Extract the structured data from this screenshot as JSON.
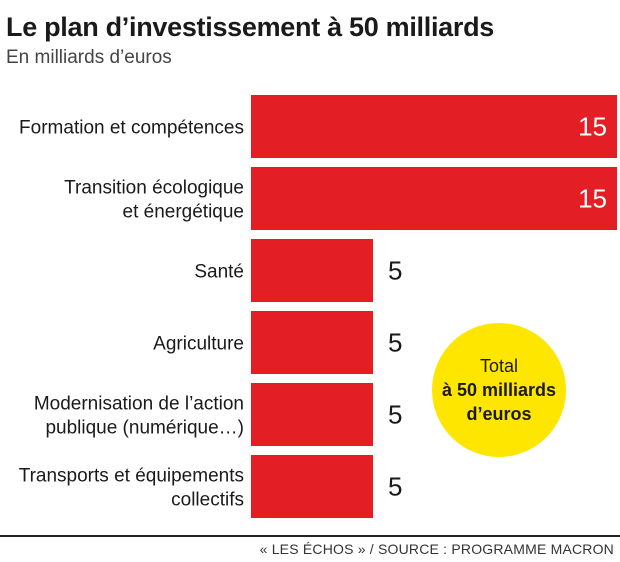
{
  "title": "Le plan d’investissement à 50 milliards",
  "subtitle": "En milliards d’euros",
  "colors": {
    "bar": "#e31e24",
    "bubble": "#ffe600"
  },
  "total": {
    "line1": "Total",
    "line2": "à 50 milliards",
    "line3": "d’euros"
  },
  "source": "« LES ÉCHOS » / SOURCE :  PROGRAMME MACRON",
  "chart_data": {
    "type": "bar",
    "orientation": "horizontal",
    "categories": [
      [
        "Formation et compétences"
      ],
      [
        "Transition écologique",
        "et énergétique"
      ],
      [
        "Santé"
      ],
      [
        "Agriculture"
      ],
      [
        "Modernisation de l’action",
        "publique (numérique…)"
      ],
      [
        "Transports et équipements",
        "collectifs"
      ]
    ],
    "values": [
      15,
      15,
      5,
      5,
      5,
      5
    ],
    "value_labels": [
      "15",
      "15",
      "5",
      "5",
      "5",
      "5"
    ],
    "xlim": [
      0,
      15
    ],
    "grid": false,
    "legend": "none"
  }
}
